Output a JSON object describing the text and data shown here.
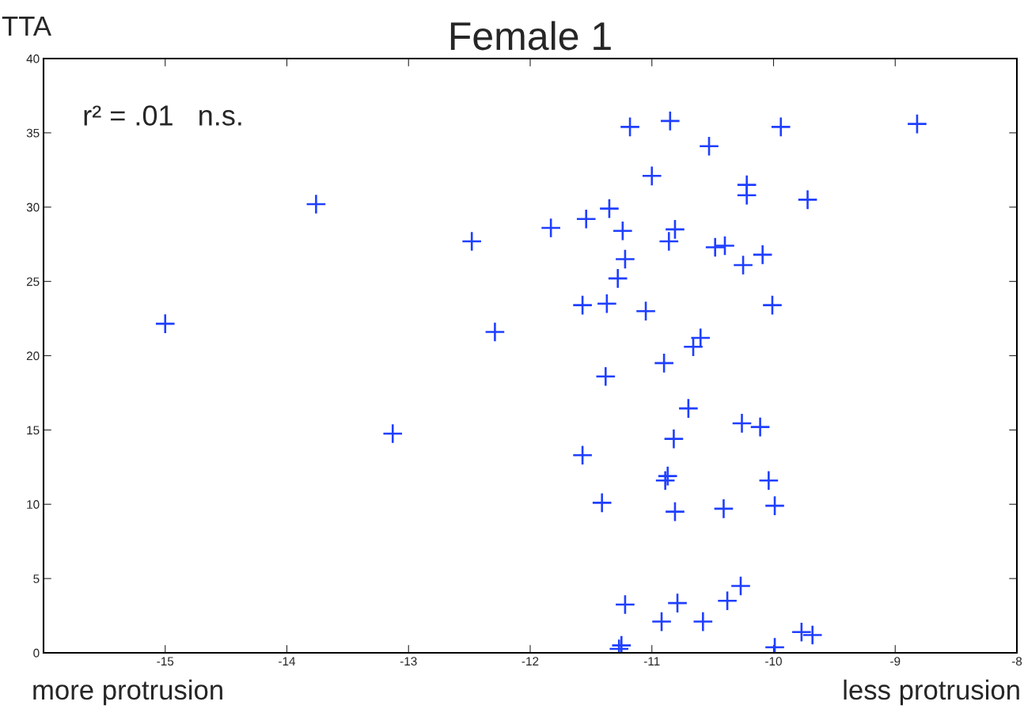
{
  "chart_data": {
    "type": "scatter",
    "title": "Female 1",
    "ylabel": "TTA",
    "annotations": [
      "r² = .01   n.s.",
      "more protrusion",
      "less protrusion"
    ],
    "x": [
      -15.0,
      -13.76,
      -13.13,
      -12.48,
      -12.29,
      -11.83,
      -11.57,
      -11.57,
      -11.54,
      -11.37,
      -11.41,
      -11.38,
      -11.35,
      -11.28,
      -11.27,
      -11.25,
      -11.24,
      -11.22,
      -11.22,
      -11.18,
      -11.05,
      -11.0,
      -10.92,
      -10.9,
      -10.89,
      -10.87,
      -10.85,
      -10.86,
      -10.81,
      -10.82,
      -10.81,
      -10.79,
      -10.7,
      -10.66,
      -10.6,
      -10.58,
      -10.53,
      -10.48,
      -10.4,
      -10.41,
      -10.38,
      -10.27,
      -10.26,
      -10.25,
      -10.22,
      -10.22,
      -10.11,
      -10.09,
      -10.04,
      -10.01,
      -9.99,
      -9.99,
      -9.94,
      -9.77,
      -9.72,
      -9.68,
      -8.82
    ],
    "series": [
      {
        "color": "#1f3fff",
        "values": [
          22.15,
          30.2,
          14.75,
          27.7,
          21.6,
          28.6,
          23.4,
          13.3,
          29.2,
          23.5,
          10.1,
          18.6,
          29.9,
          25.2,
          0.27,
          0.5,
          28.4,
          26.5,
          3.25,
          35.4,
          23.0,
          32.1,
          2.1,
          19.5,
          11.6,
          11.9,
          35.8,
          27.7,
          28.5,
          14.4,
          9.5,
          3.35,
          16.45,
          20.6,
          21.2,
          2.1,
          34.1,
          27.3,
          27.4,
          9.7,
          3.5,
          4.5,
          15.45,
          26.1,
          31.5,
          30.8,
          15.2,
          26.8,
          11.6,
          23.4,
          9.9,
          0.37,
          35.4,
          1.4,
          30.5,
          1.2,
          35.6
        ]
      }
    ],
    "marker": "cross",
    "xlim": [
      -16,
      -8
    ],
    "xticks": [
      {
        "value": -16,
        "label": null
      },
      -15,
      -14,
      -13,
      -12,
      -11,
      -10,
      -9,
      -8
    ],
    "ylim": [
      0,
      40
    ],
    "yticks": [
      0,
      5,
      10,
      15,
      20,
      25,
      30,
      35,
      40
    ],
    "grid": false,
    "legend": false
  }
}
